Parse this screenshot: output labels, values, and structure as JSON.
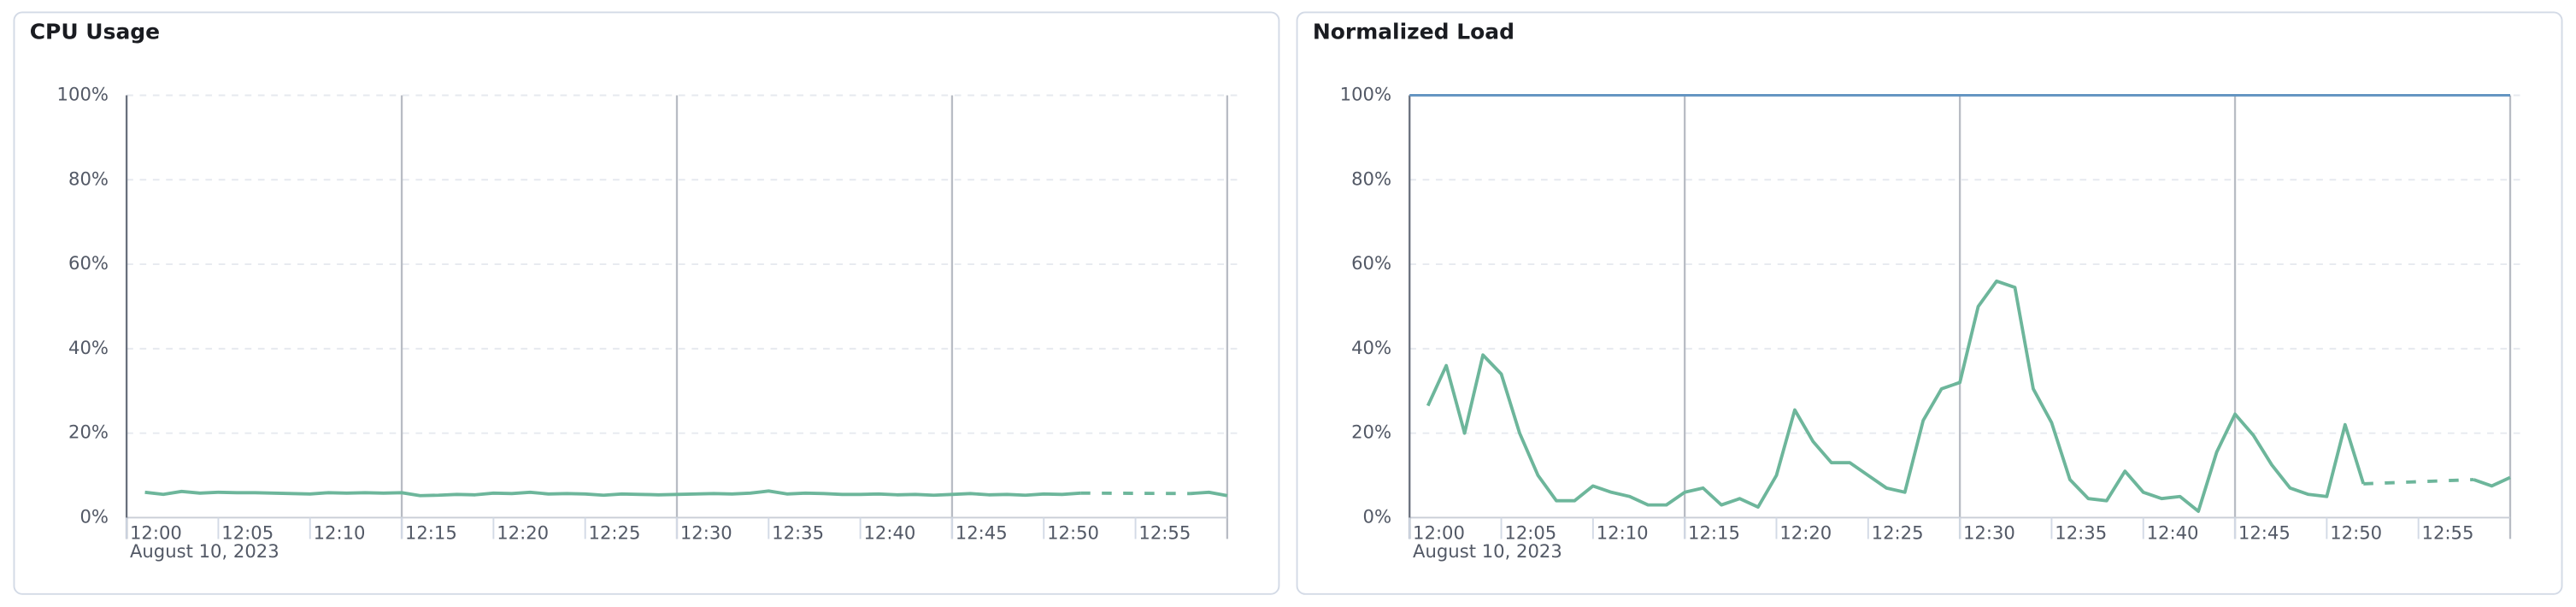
{
  "chart_data": [
    {
      "type": "line",
      "title": "CPU Usage",
      "x_date_label": "August 10, 2023",
      "x": [
        "12:01",
        "12:02",
        "12:03",
        "12:04",
        "12:05",
        "12:06",
        "12:07",
        "12:08",
        "12:09",
        "12:10",
        "12:11",
        "12:12",
        "12:13",
        "12:14",
        "12:15",
        "12:16",
        "12:17",
        "12:18",
        "12:19",
        "12:20",
        "12:21",
        "12:22",
        "12:23",
        "12:24",
        "12:25",
        "12:26",
        "12:27",
        "12:28",
        "12:29",
        "12:30",
        "12:31",
        "12:32",
        "12:33",
        "12:34",
        "12:35",
        "12:36",
        "12:37",
        "12:38",
        "12:39",
        "12:40",
        "12:41",
        "12:42",
        "12:43",
        "12:44",
        "12:45",
        "12:46",
        "12:47",
        "12:48",
        "12:49",
        "12:50",
        "12:51",
        "12:52",
        "12:53",
        "12:54",
        "12:55",
        "12:56",
        "12:57",
        "12:58",
        "12:59",
        "13:00"
      ],
      "series": [
        {
          "color": "#6db69b",
          "values": [
            6,
            5.5,
            6.2,
            5.8,
            6,
            5.9,
            5.9,
            5.8,
            5.7,
            5.6,
            5.9,
            5.8,
            5.9,
            5.8,
            5.9,
            5.2,
            5.3,
            5.5,
            5.4,
            5.8,
            5.7,
            6,
            5.6,
            5.7,
            5.6,
            5.3,
            5.6,
            5.5,
            5.4,
            5.5,
            5.6,
            5.7,
            5.6,
            5.8,
            6.3,
            5.6,
            5.8,
            5.7,
            5.5,
            5.5,
            5.6,
            5.4,
            5.5,
            5.3,
            5.5,
            5.7,
            5.4,
            5.5,
            5.3,
            5.6,
            5.5,
            5.8,
            null,
            null,
            null,
            null,
            null,
            5.7,
            6,
            5.2
          ]
        }
      ],
      "xlim": [
        "12:00",
        "13:00"
      ],
      "xticks": [
        "12:00",
        "12:05",
        "12:10",
        "12:15",
        "12:20",
        "12:25",
        "12:30",
        "12:35",
        "12:40",
        "12:45",
        "12:50",
        "12:55"
      ],
      "x_major_lines": [
        "12:15",
        "12:30",
        "12:45",
        "13:00"
      ],
      "ylim": [
        0,
        100
      ],
      "yticks": [
        {
          "value": 0,
          "label": "0%"
        },
        {
          "value": 20,
          "label": "20%"
        },
        {
          "value": 40,
          "label": "40%"
        },
        {
          "value": 60,
          "label": "60%"
        },
        {
          "value": 80,
          "label": "80%"
        },
        {
          "value": 100,
          "label": "100%"
        }
      ],
      "grid": true
    },
    {
      "type": "line",
      "title": "Normalized Load",
      "x_date_label": "August 10, 2023",
      "x": [
        "12:01",
        "12:02",
        "12:03",
        "12:04",
        "12:05",
        "12:06",
        "12:07",
        "12:08",
        "12:09",
        "12:10",
        "12:11",
        "12:12",
        "12:13",
        "12:14",
        "12:15",
        "12:16",
        "12:17",
        "12:18",
        "12:19",
        "12:20",
        "12:21",
        "12:22",
        "12:23",
        "12:24",
        "12:25",
        "12:26",
        "12:27",
        "12:28",
        "12:29",
        "12:30",
        "12:31",
        "12:32",
        "12:33",
        "12:34",
        "12:35",
        "12:36",
        "12:37",
        "12:38",
        "12:39",
        "12:40",
        "12:41",
        "12:42",
        "12:43",
        "12:44",
        "12:45",
        "12:46",
        "12:47",
        "12:48",
        "12:49",
        "12:50",
        "12:51",
        "12:52",
        "12:53",
        "12:54",
        "12:55",
        "12:56",
        "12:57",
        "12:58",
        "12:59",
        "13:00"
      ],
      "series": [
        {
          "color": "#6db69b",
          "values": [
            26.5,
            36,
            20,
            38.5,
            34,
            20,
            10,
            4,
            4,
            7.5,
            6,
            5,
            3,
            3,
            6,
            7,
            3,
            4.5,
            2.5,
            10,
            25.5,
            18,
            13,
            13,
            10,
            7,
            6,
            23,
            30.5,
            32,
            50,
            56,
            54.5,
            30.5,
            22.5,
            9,
            4.5,
            4,
            11,
            6,
            4.5,
            5,
            1.5,
            15.5,
            24.5,
            19.5,
            12.5,
            7,
            5.5,
            5,
            22,
            8,
            null,
            null,
            null,
            null,
            null,
            9,
            7.5,
            9.5
          ]
        }
      ],
      "xlim": [
        "12:00",
        "13:00"
      ],
      "xticks": [
        "12:00",
        "12:05",
        "12:10",
        "12:15",
        "12:20",
        "12:25",
        "12:30",
        "12:35",
        "12:40",
        "12:45",
        "12:50",
        "12:55"
      ],
      "x_major_lines": [
        "12:15",
        "12:30",
        "12:45",
        "13:00"
      ],
      "threshold": {
        "value": 100,
        "color": "#6092c0"
      },
      "ylim": [
        0,
        100
      ],
      "yticks": [
        {
          "value": 0,
          "label": "0%"
        },
        {
          "value": 20,
          "label": "20%"
        },
        {
          "value": 40,
          "label": "40%"
        },
        {
          "value": 60,
          "label": "60%"
        },
        {
          "value": 80,
          "label": "80%"
        },
        {
          "value": 100,
          "label": "100%"
        }
      ],
      "grid": true
    }
  ]
}
